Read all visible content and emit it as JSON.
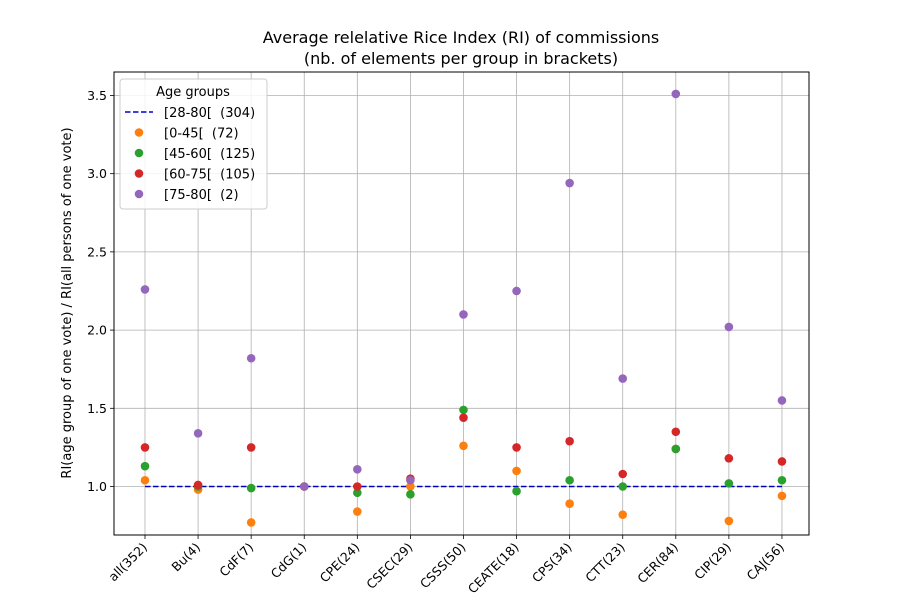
{
  "chart_data": {
    "type": "scatter",
    "title_lines": [
      "Average relelative Rice Index (RI) of commissions",
      "(nb. of elements per group in brackets)"
    ],
    "xlabel": "",
    "ylabel": "RI(age group of one vote) / RI(all persons of one vote)",
    "categories": [
      "all(352)",
      "Bu(4)",
      "CdF(7)",
      "CdG(1)",
      "CPE(24)",
      "CSEC(29)",
      "CSSS(50)",
      "CEATE(18)",
      "CPS(34)",
      "CTT(23)",
      "CER(84)",
      "CIP(29)",
      "CAJ(56)"
    ],
    "ylim": [
      0.69,
      3.65
    ],
    "yticks": [
      1.0,
      1.5,
      2.0,
      2.5,
      3.0,
      3.5
    ],
    "ytick_labels": [
      "1.0",
      "1.5",
      "2.0",
      "2.5",
      "3.0",
      "3.5"
    ],
    "grid": true,
    "legend": {
      "title": "Age groups",
      "placement": "top-left"
    },
    "reference_line": {
      "name": "[28-80[  (304)",
      "value": 1.0,
      "color": "#0000cc",
      "style": "dashed"
    },
    "series": [
      {
        "name": "[0-45[  (72)",
        "color": "#ff7f0e",
        "values": [
          1.04,
          0.98,
          0.77,
          1.0,
          0.84,
          1.0,
          1.26,
          1.1,
          0.89,
          0.82,
          1.24,
          0.78,
          0.94
        ]
      },
      {
        "name": "[45-60[  (125)",
        "color": "#2ca02c",
        "values": [
          1.13,
          1.0,
          0.99,
          1.0,
          0.96,
          0.95,
          1.49,
          0.97,
          1.04,
          1.0,
          1.24,
          1.02,
          1.04
        ]
      },
      {
        "name": "[60-75[  (105)",
        "color": "#d62728",
        "values": [
          1.25,
          1.01,
          1.25,
          1.0,
          1.0,
          1.05,
          1.44,
          1.25,
          1.29,
          1.08,
          1.35,
          1.18,
          1.16
        ]
      },
      {
        "name": "[75-80[  (2)",
        "color": "#9467bd",
        "values": [
          2.26,
          1.34,
          1.82,
          1.0,
          1.11,
          1.04,
          2.1,
          2.25,
          2.94,
          1.69,
          3.51,
          2.02,
          1.55
        ]
      }
    ]
  }
}
